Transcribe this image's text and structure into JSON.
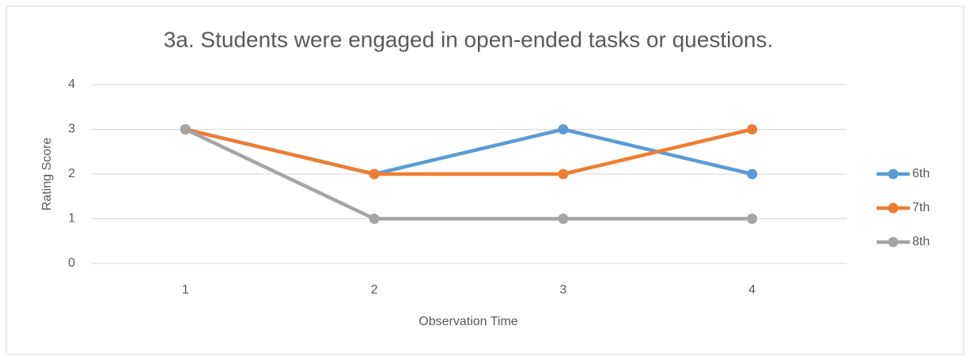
{
  "chart_data": {
    "type": "line",
    "title": "3a. Students were engaged in open-ended tasks or questions.",
    "x_label": "Observation Time",
    "y_label": "Rating Score",
    "categories": [
      "1",
      "2",
      "3",
      "4"
    ],
    "series": [
      {
        "name": "6th",
        "color": "#5b9bd5",
        "values": [
          3,
          2,
          3,
          2
        ]
      },
      {
        "name": "7th",
        "color": "#ed7d31",
        "values": [
          3,
          2,
          2,
          3
        ]
      },
      {
        "name": "8th",
        "color": "#a5a5a5",
        "values": [
          3,
          1,
          1,
          1
        ]
      }
    ],
    "ylim": [
      0,
      4
    ],
    "yticks": [
      0,
      1,
      2,
      3,
      4
    ],
    "grid": true,
    "legend": "right"
  }
}
